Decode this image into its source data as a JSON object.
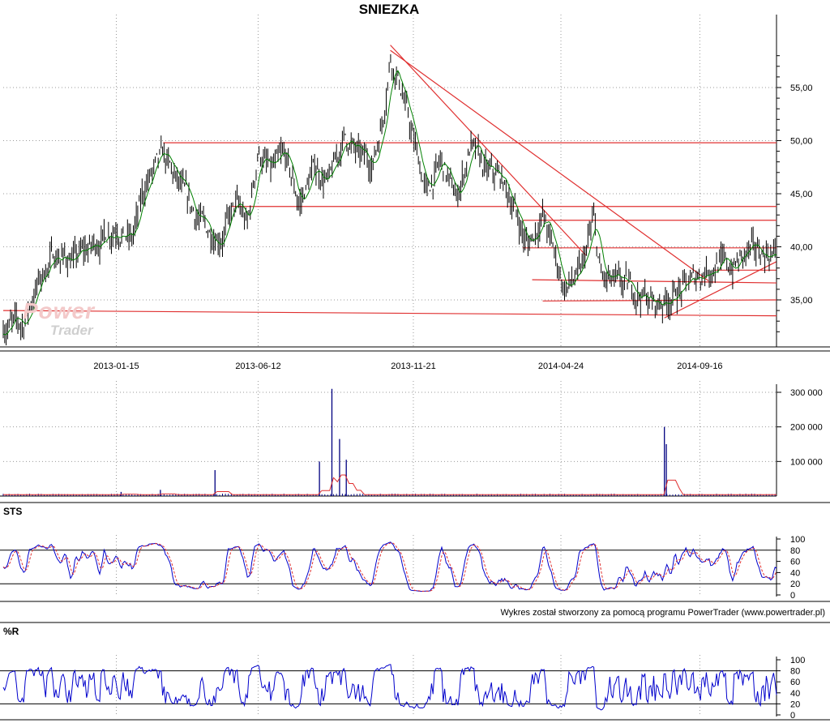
{
  "title": "SNIEZKA",
  "credit": "Wykres został stworzony za pomocą programu PowerTrader (www.powertrader.pl)",
  "watermark": {
    "line1": "Power",
    "line2": "Trader"
  },
  "colors": {
    "price": "#000000",
    "ma": "#008000",
    "trend": "#e03030",
    "volume": "#000080",
    "volume_ma": "#e03030",
    "sts_k": "#0000cc",
    "sts_d": "#e03030",
    "wr": "#0000cc",
    "grid": "#9a9a9a"
  },
  "chart_data": [
    {
      "type": "candlestick",
      "title": "SNIEZKA",
      "date_range": [
        "2012-09-19",
        "2014-12-05"
      ],
      "xticks": [
        "2013-01-15",
        "2013-06-12",
        "2013-11-21",
        "2014-04-24",
        "2014-09-16"
      ],
      "yticks": [
        "35,00",
        "40,00",
        "45,00",
        "50,00",
        "55,00"
      ],
      "ylim": [
        31,
        60
      ],
      "close_path": [
        [
          "2012-09-19",
          32.6
        ],
        [
          "2012-10-10",
          32.7
        ],
        [
          "2012-10-25",
          36.5
        ],
        [
          "2012-11-10",
          39.2
        ],
        [
          "2012-12-01",
          38.8
        ],
        [
          "2012-12-20",
          40.0
        ],
        [
          "2013-01-15",
          42.0
        ],
        [
          "2013-01-31",
          40.5
        ],
        [
          "2013-02-15",
          46.0
        ],
        [
          "2013-03-05",
          48.5
        ],
        [
          "2013-03-20",
          46.0
        ],
        [
          "2013-04-01",
          44.0
        ],
        [
          "2013-04-20",
          41.5
        ],
        [
          "2013-05-05",
          41.0
        ],
        [
          "2013-05-20",
          44.0
        ],
        [
          "2013-06-01",
          42.0
        ],
        [
          "2013-06-12",
          49.0
        ],
        [
          "2013-06-25",
          47.0
        ],
        [
          "2013-07-10",
          48.5
        ],
        [
          "2013-07-25",
          44.0
        ],
        [
          "2013-08-10",
          47.5
        ],
        [
          "2013-08-25",
          46.0
        ],
        [
          "2013-09-10",
          50.5
        ],
        [
          "2013-09-25",
          48.5
        ],
        [
          "2013-10-10",
          48.0
        ],
        [
          "2013-10-20",
          52.0
        ],
        [
          "2013-10-28",
          58.0
        ],
        [
          "2013-11-08",
          55.0
        ],
        [
          "2013-11-21",
          50.0
        ],
        [
          "2013-12-05",
          45.0
        ],
        [
          "2013-12-20",
          48.0
        ],
        [
          "2014-01-05",
          44.5
        ],
        [
          "2014-01-20",
          49.5
        ],
        [
          "2014-02-05",
          47.0
        ],
        [
          "2014-02-20",
          46.5
        ],
        [
          "2014-03-05",
          44.0
        ],
        [
          "2014-03-20",
          40.0
        ],
        [
          "2014-04-05",
          43.0
        ],
        [
          "2014-04-15",
          40.0
        ],
        [
          "2014-04-28",
          36.0
        ],
        [
          "2014-05-15",
          37.5
        ],
        [
          "2014-05-28",
          42.5
        ],
        [
          "2014-06-05",
          37.0
        ],
        [
          "2014-06-20",
          36.5
        ],
        [
          "2014-07-10",
          36.0
        ],
        [
          "2014-08-01",
          34.5
        ],
        [
          "2014-08-20",
          35.5
        ],
        [
          "2014-09-05",
          36.5
        ],
        [
          "2014-09-16",
          37.5
        ],
        [
          "2014-10-05",
          38.5
        ],
        [
          "2014-10-20",
          38.0
        ],
        [
          "2014-11-05",
          39.5
        ],
        [
          "2014-11-20",
          39.5
        ],
        [
          "2014-12-05",
          39.3
        ]
      ],
      "trendlines": [
        {
          "from": [
            "2012-09-19",
            34.0
          ],
          "to": [
            "2014-12-05",
            33.5
          ]
        },
        {
          "from": [
            "2013-03-05",
            49.8
          ],
          "to": [
            "2014-12-05",
            49.8
          ]
        },
        {
          "from": [
            "2013-05-15",
            43.8
          ],
          "to": [
            "2014-12-05",
            43.8
          ]
        },
        {
          "from": [
            "2014-03-15",
            42.5
          ],
          "to": [
            "2014-12-05",
            42.5
          ]
        },
        {
          "from": [
            "2014-03-15",
            39.9
          ],
          "to": [
            "2014-12-05",
            39.9
          ]
        },
        {
          "from": [
            "2014-10-01",
            37.8
          ],
          "to": [
            "2014-12-05",
            37.8
          ]
        },
        {
          "from": [
            "2014-03-25",
            36.9
          ],
          "to": [
            "2014-12-05",
            36.6
          ]
        },
        {
          "from": [
            "2014-04-05",
            34.9
          ],
          "to": [
            "2014-12-05",
            35.0
          ]
        },
        {
          "from": [
            "2013-10-28",
            59.0
          ],
          "to": [
            "2014-05-20",
            39.2
          ]
        },
        {
          "from": [
            "2013-10-28",
            58.5
          ],
          "to": [
            "2014-09-25",
            36.8
          ]
        },
        {
          "from": [
            "2014-08-10",
            33.3
          ],
          "to": [
            "2014-12-05",
            38.6
          ]
        }
      ]
    },
    {
      "type": "bar",
      "title": "Volume",
      "yticks": [
        "100 000",
        "200 000",
        "300 000"
      ],
      "ylim": [
        0,
        330000
      ],
      "spikes": [
        [
          "2013-01-20",
          12000
        ],
        [
          "2013-03-02",
          18000
        ],
        [
          "2013-04-28",
          75000
        ],
        [
          "2013-08-15",
          100000
        ],
        [
          "2013-08-28",
          310000
        ],
        [
          "2013-09-05",
          165000
        ],
        [
          "2013-09-12",
          105000
        ],
        [
          "2014-08-10",
          200000
        ],
        [
          "2014-08-12",
          150000
        ]
      ],
      "baseline": 3000
    },
    {
      "type": "line",
      "title": "STS",
      "yticks": [
        "0",
        "20",
        "40",
        "60",
        "80",
        "100"
      ],
      "ylim": [
        0,
        100
      ]
    },
    {
      "type": "line",
      "title": "%R",
      "yticks": [
        "0",
        "20",
        "40",
        "60",
        "80",
        "100"
      ],
      "ylim": [
        0,
        100
      ]
    }
  ]
}
